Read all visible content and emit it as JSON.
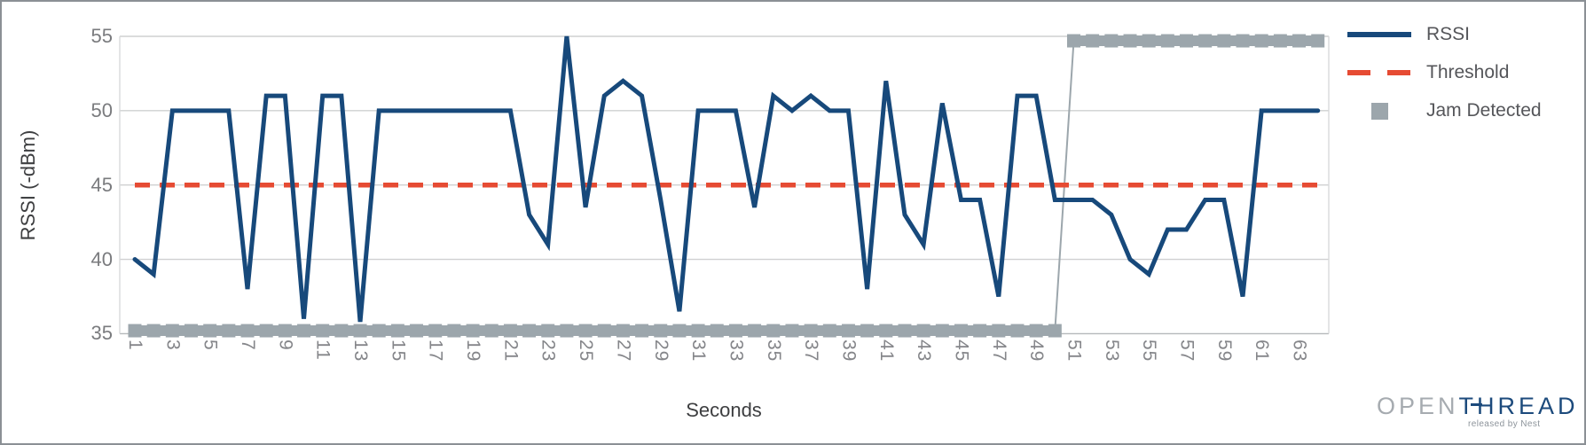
{
  "chart_data": {
    "type": "line",
    "title": "",
    "xlabel": "Seconds",
    "ylabel": "RSSI (-dBm)",
    "x_tick_labels": [
      "1",
      "3",
      "5",
      "7",
      "9",
      "11",
      "13",
      "15",
      "17",
      "19",
      "21",
      "23",
      "25",
      "27",
      "29",
      "31",
      "33",
      "35",
      "37",
      "39",
      "41",
      "43",
      "45",
      "47",
      "49",
      "51",
      "53",
      "55",
      "57",
      "59",
      "61",
      "63"
    ],
    "y_ticks": [
      55,
      50,
      45,
      40,
      35
    ],
    "ylim": [
      35,
      55
    ],
    "x_range_seconds": [
      1,
      64
    ],
    "grid": "horizontal",
    "legend_position": "top-right",
    "series": [
      {
        "name": "RSSI",
        "type": "line",
        "color": "#17497b",
        "values": [
          40,
          39,
          50,
          50,
          50,
          50,
          38,
          51,
          51,
          36,
          51,
          51,
          35.8,
          50,
          50,
          50,
          50,
          50,
          50,
          50,
          50,
          43,
          41,
          55,
          43.5,
          51,
          52,
          51,
          44,
          36.5,
          50,
          50,
          50,
          43.5,
          51,
          50,
          51,
          50,
          50,
          38,
          52,
          43,
          41,
          50.5,
          44,
          44,
          37.5,
          51,
          51,
          44,
          44,
          44,
          43,
          40,
          39,
          42,
          42,
          44,
          44,
          37.5,
          50,
          50,
          50,
          50
        ]
      },
      {
        "name": "Threshold",
        "type": "dashed-line",
        "color": "#e64b33",
        "value": 45
      },
      {
        "name": "Jam Detected",
        "type": "square-marker-line",
        "color": "#9ca6ac",
        "values": [
          35.2,
          35.2,
          35.2,
          35.2,
          35.2,
          35.2,
          35.2,
          35.2,
          35.2,
          35.2,
          35.2,
          35.2,
          35.2,
          35.2,
          35.2,
          35.2,
          35.2,
          35.2,
          35.2,
          35.2,
          35.2,
          35.2,
          35.2,
          35.2,
          35.2,
          35.2,
          35.2,
          35.2,
          35.2,
          35.2,
          35.2,
          35.2,
          35.2,
          35.2,
          35.2,
          35.2,
          35.2,
          35.2,
          35.2,
          35.2,
          35.2,
          35.2,
          35.2,
          35.2,
          35.2,
          35.2,
          35.2,
          35.2,
          35.2,
          35.2,
          54.7,
          54.7,
          54.7,
          54.7,
          54.7,
          54.7,
          54.7,
          54.7,
          54.7,
          54.7,
          54.7,
          54.7,
          54.7,
          54.7
        ]
      }
    ]
  },
  "axis": {
    "y_title": "RSSI (-dBm)",
    "x_title": "Seconds"
  },
  "legend": {
    "items": [
      {
        "label": "RSSI",
        "swatch": "solid-line-icon"
      },
      {
        "label": "Threshold",
        "swatch": "dashed-line-icon"
      },
      {
        "label": "Jam Detected",
        "swatch": "square-icon"
      }
    ]
  },
  "logo": {
    "part1": "OPEN",
    "part2": "TH",
    "part3": "READ",
    "tagline": "released by Nest"
  },
  "colors": {
    "rssi_line": "#17497b",
    "threshold_line": "#e64b33",
    "jam_marker": "#9ca6ac",
    "gridline": "#cfd0d1",
    "axis_line": "#b5b8ba",
    "tick_text": "#7a7b7e",
    "title_text": "#3d3e40",
    "legend_text": "#55565a",
    "logo_gray": "#a6abb0",
    "logo_navy": "#1c4a7c"
  }
}
